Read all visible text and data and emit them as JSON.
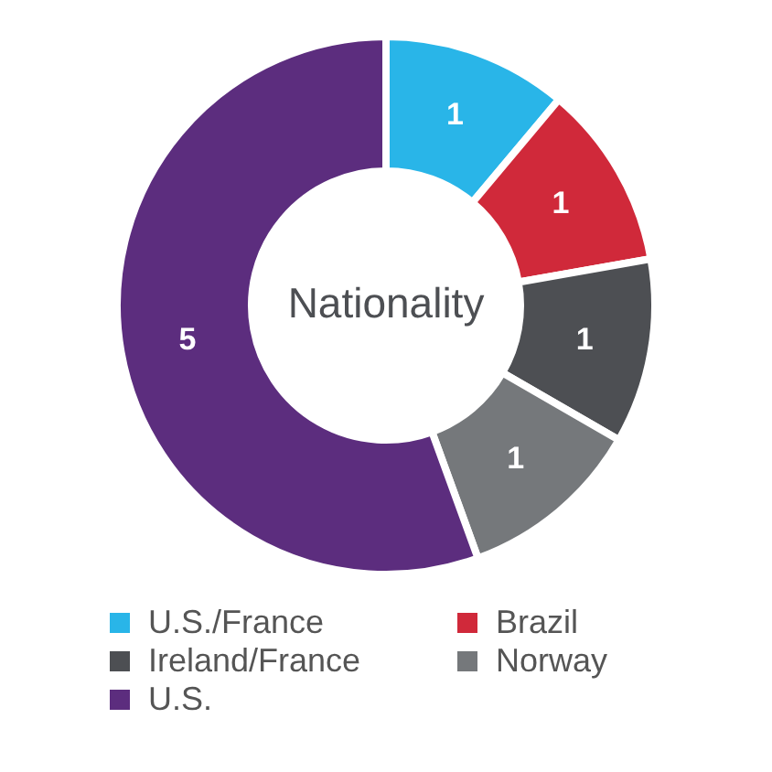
{
  "chart_data": {
    "type": "donut",
    "title": "Nationality",
    "categories": [
      "U.S./France",
      "Brazil",
      "Ireland/France",
      "Norway",
      "U.S."
    ],
    "values": [
      1,
      1,
      1,
      1,
      5
    ],
    "colors": [
      "#29b5e8",
      "#d0293a",
      "#4d4f53",
      "#75787b",
      "#5c2d7e"
    ],
    "data_labels": true,
    "legend": "bottom"
  }
}
